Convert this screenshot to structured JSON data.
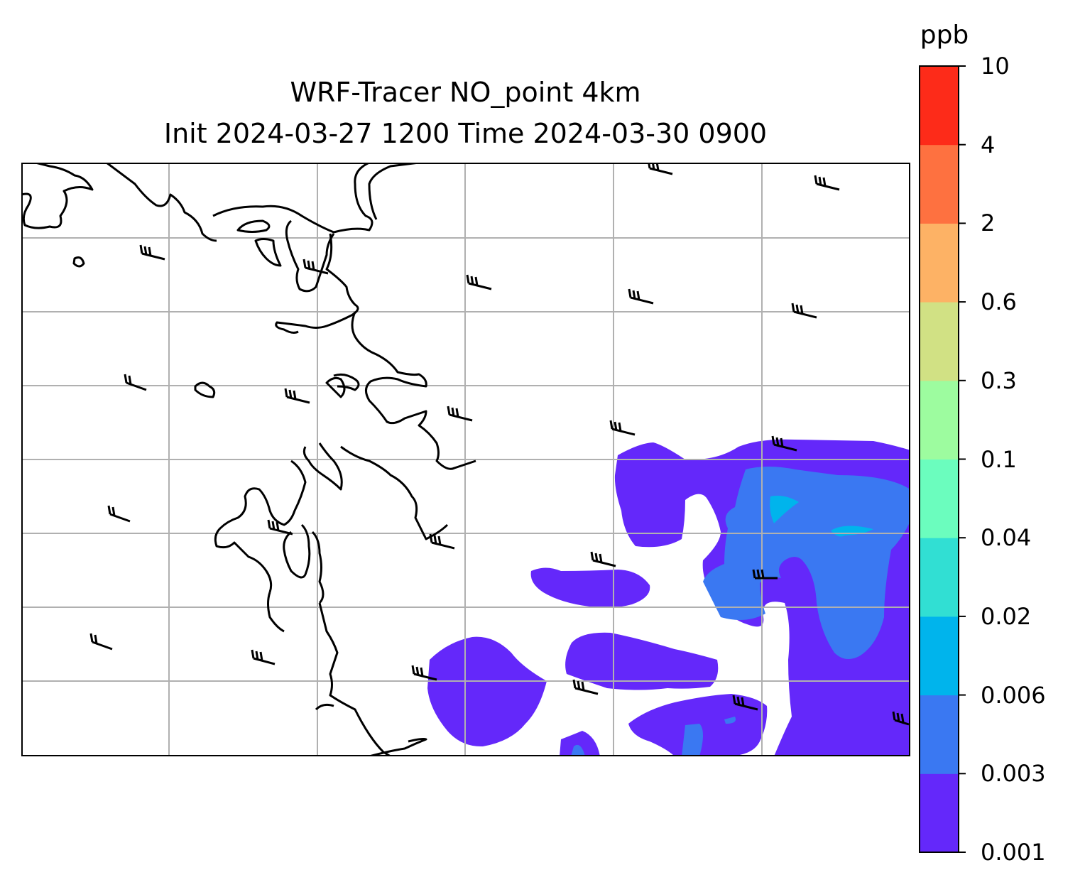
{
  "title": {
    "line1": "WRF-Tracer NO_point 4km",
    "line2": "Init 2024-03-27 1200 Time 2024-03-30 0900"
  },
  "colorbar": {
    "unit": "ppb",
    "levels": [
      "0.001",
      "0.003",
      "0.006",
      "0.02",
      "0.04",
      "0.1",
      "0.3",
      "0.6",
      "2",
      "4",
      "10"
    ],
    "colors": [
      "#6428fa",
      "#3a78f2",
      "#00b4ec",
      "#31dfd3",
      "#6bfdbe",
      "#9dfc9f",
      "#d1e184",
      "#fdb265",
      "#fe7140",
      "#fd2b19"
    ]
  },
  "map": {
    "gridlines": true,
    "grid_color": "#b0b0b0",
    "coastline_color": "#000000",
    "contour_field": "NO_point tracer concentration",
    "wind_barbs": "present"
  }
}
